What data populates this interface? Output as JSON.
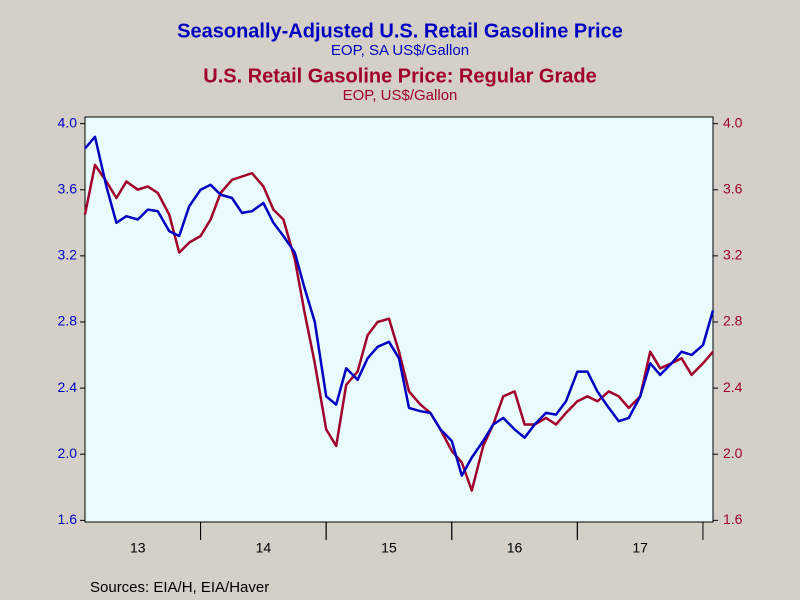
{
  "chart_data": {
    "type": "line",
    "series": [
      {
        "name": "Seasonally-Adjusted U.S. Retail Gasoline Price",
        "units": "EOP, SA US$/Gallon",
        "color": "#0000c0",
        "axis": "y",
        "values": [
          3.85,
          3.92,
          3.62,
          3.4,
          3.44,
          3.42,
          3.48,
          3.47,
          3.35,
          3.32,
          3.5,
          3.6,
          3.63,
          3.57,
          3.55,
          3.46,
          3.47,
          3.52,
          3.4,
          3.32,
          3.22,
          3.0,
          2.8,
          2.35,
          2.3,
          2.52,
          2.45,
          2.58,
          2.65,
          2.68,
          2.58,
          2.28,
          2.26,
          2.25,
          2.15,
          2.08,
          1.87,
          1.98,
          2.08,
          2.18,
          2.22,
          2.15,
          2.1,
          2.18,
          2.25,
          2.24,
          2.32,
          2.5,
          2.5,
          2.38,
          2.28,
          2.2,
          2.22,
          2.35,
          2.55,
          2.48,
          2.55,
          2.62,
          2.6,
          2.66,
          2.87
        ]
      },
      {
        "name": "U.S. Retail Gasoline Price: Regular Grade",
        "units": "EOP, US$/Gallon",
        "color": "#a0002a",
        "axis": "y2",
        "values": [
          3.45,
          3.75,
          3.65,
          3.55,
          3.65,
          3.6,
          3.62,
          3.58,
          3.45,
          3.22,
          3.28,
          3.32,
          3.42,
          3.58,
          3.66,
          3.68,
          3.7,
          3.62,
          3.48,
          3.42,
          3.18,
          2.85,
          2.55,
          2.15,
          2.05,
          2.42,
          2.5,
          2.72,
          2.8,
          2.82,
          2.62,
          2.38,
          2.3,
          2.25,
          2.15,
          2.02,
          1.95,
          1.78,
          2.05,
          2.18,
          2.35,
          2.38,
          2.18,
          2.18,
          2.22,
          2.18,
          2.25,
          2.32,
          2.35,
          2.32,
          2.38,
          2.35,
          2.28,
          2.35,
          2.62,
          2.52,
          2.55,
          2.58,
          2.48,
          2.55,
          2.62
        ]
      }
    ],
    "x": [
      13.08,
      13.16,
      13.25,
      13.33,
      13.41,
      13.5,
      13.58,
      13.66,
      13.75,
      13.83,
      13.91,
      14.0,
      14.08,
      14.16,
      14.25,
      14.33,
      14.41,
      14.5,
      14.58,
      14.66,
      14.75,
      14.83,
      14.91,
      15.0,
      15.08,
      15.16,
      15.25,
      15.33,
      15.41,
      15.5,
      15.58,
      15.66,
      15.75,
      15.83,
      15.91,
      16.0,
      16.08,
      16.16,
      16.25,
      16.33,
      16.41,
      16.5,
      16.58,
      16.66,
      16.75,
      16.83,
      16.91,
      17.0,
      17.08,
      17.16,
      17.25,
      17.33,
      17.41,
      17.5,
      17.58,
      17.66,
      17.75,
      17.83,
      17.91,
      18.0,
      18.08
    ],
    "xlim": [
      13.08,
      18.08
    ],
    "xticks": [
      {
        "value": 13.5,
        "label": "13"
      },
      {
        "value": 14.5,
        "label": "14"
      },
      {
        "value": 15.5,
        "label": "15"
      },
      {
        "value": 16.5,
        "label": "16"
      },
      {
        "value": 17.5,
        "label": "17"
      }
    ],
    "ylim": [
      1.59,
      4.04
    ],
    "yticks": [
      {
        "value": 1.6,
        "label": "1.6"
      },
      {
        "value": 2,
        "label": "2.0"
      },
      2.4,
      2.8,
      3.2,
      3.6,
      {
        "value": 4,
        "label": "4.0"
      }
    ],
    "y2lim": [
      1.59,
      4.04
    ],
    "y2ticks": [
      {
        "value": 1.6,
        "label": "1.6"
      },
      {
        "value": 2,
        "label": "2.0"
      },
      2.4,
      2.8,
      3.2,
      3.6,
      {
        "value": 4,
        "label": "4.0"
      }
    ],
    "source": "Sources:  EIA/H, EIA/Haver"
  }
}
